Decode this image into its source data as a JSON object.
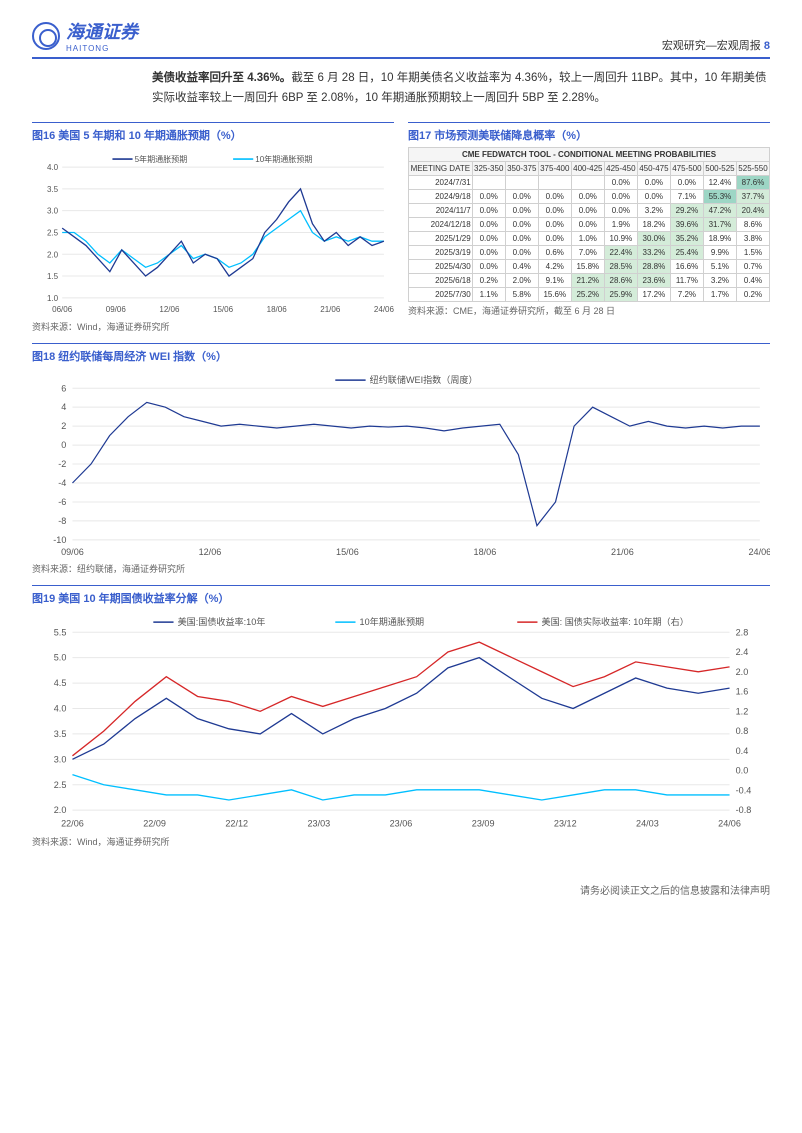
{
  "header": {
    "brand_cn": "海通证券",
    "brand_en": "HAITONG",
    "crumb": "宏观研究—宏观周报",
    "page_no": "8"
  },
  "paragraph": {
    "bold_lead": "美债收益率回升至 4.36%。",
    "rest": "截至 6 月 28 日，10 年期美债名义收益率为 4.36%，较上一周回升 11BP。其中，10 年期美债实际收益率较上一周回升 6BP 至 2.08%，10 年期通胀预期较上一周回升 5BP 至 2.28%。"
  },
  "fig16": {
    "title": "图16 美国 5 年期和 10 年期通胀预期（%）",
    "source": "资料来源：Wind，海通证券研究所",
    "legend": [
      "5年期通胀预期",
      "10年期通胀预期"
    ],
    "colors": [
      "#1f3a93",
      "#00bfff"
    ],
    "ylim": [
      1,
      4
    ],
    "ytick_step": 0.5,
    "xticks": [
      "06/06",
      "09/06",
      "12/06",
      "15/06",
      "18/06",
      "21/06",
      "24/06"
    ],
    "grid_color": "#e8e8e8",
    "bg_color": "#ffffff",
    "series_5y": [
      2.6,
      2.4,
      2.2,
      1.9,
      1.6,
      2.1,
      1.8,
      1.5,
      1.7,
      2.0,
      2.3,
      1.8,
      2.0,
      1.9,
      1.5,
      1.7,
      1.9,
      2.5,
      2.8,
      3.2,
      3.5,
      2.7,
      2.3,
      2.5,
      2.2,
      2.4,
      2.2,
      2.3
    ],
    "series_10y": [
      2.5,
      2.5,
      2.3,
      2.0,
      1.8,
      2.1,
      1.9,
      1.7,
      1.8,
      2.0,
      2.2,
      1.9,
      2.0,
      1.9,
      1.7,
      1.8,
      2.0,
      2.4,
      2.6,
      2.8,
      3.0,
      2.5,
      2.3,
      2.4,
      2.3,
      2.4,
      2.3,
      2.3
    ]
  },
  "fig17": {
    "title": "图17 市场预测美联储降息概率（%）",
    "source": "资料来源：CME，海通证券研究所，截至 6 月 28 日",
    "table_title": "CME FEDWATCH TOOL - CONDITIONAL MEETING PROBABILITIES",
    "col_head": "MEETING DATE",
    "cols": [
      "325-350",
      "350-375",
      "375-400",
      "400-425",
      "425-450",
      "450-475",
      "475-500",
      "500-525",
      "525-550"
    ],
    "rows": [
      {
        "d": "2024/7/31",
        "v": [
          "",
          "",
          "",
          "",
          "0.0%",
          "0.0%",
          "0.0%",
          "12.4%",
          "87.6%"
        ]
      },
      {
        "d": "2024/9/18",
        "v": [
          "0.0%",
          "0.0%",
          "0.0%",
          "0.0%",
          "0.0%",
          "0.0%",
          "7.1%",
          "55.3%",
          "37.7%"
        ]
      },
      {
        "d": "2024/11/7",
        "v": [
          "0.0%",
          "0.0%",
          "0.0%",
          "0.0%",
          "0.0%",
          "3.2%",
          "29.2%",
          "47.2%",
          "20.4%"
        ]
      },
      {
        "d": "2024/12/18",
        "v": [
          "0.0%",
          "0.0%",
          "0.0%",
          "0.0%",
          "1.9%",
          "18.2%",
          "39.6%",
          "31.7%",
          "8.6%"
        ]
      },
      {
        "d": "2025/1/29",
        "v": [
          "0.0%",
          "0.0%",
          "0.0%",
          "1.0%",
          "10.9%",
          "30.0%",
          "35.2%",
          "18.9%",
          "3.8%"
        ]
      },
      {
        "d": "2025/3/19",
        "v": [
          "0.0%",
          "0.0%",
          "0.6%",
          "7.0%",
          "22.4%",
          "33.2%",
          "25.4%",
          "9.9%",
          "1.5%"
        ]
      },
      {
        "d": "2025/4/30",
        "v": [
          "0.0%",
          "0.4%",
          "4.2%",
          "15.8%",
          "28.5%",
          "28.8%",
          "16.6%",
          "5.1%",
          "0.7%"
        ]
      },
      {
        "d": "2025/6/18",
        "v": [
          "0.2%",
          "2.0%",
          "9.1%",
          "21.2%",
          "28.6%",
          "23.6%",
          "11.7%",
          "3.2%",
          "0.4%"
        ]
      },
      {
        "d": "2025/7/30",
        "v": [
          "1.1%",
          "5.8%",
          "15.6%",
          "25.2%",
          "25.9%",
          "17.2%",
          "7.2%",
          "1.7%",
          "0.2%"
        ]
      }
    ],
    "heat_colors": {
      "high": "#9dd6c5",
      "mid": "#d4ecd9",
      "low": "#ffffff"
    }
  },
  "fig18": {
    "title": "图18 纽约联储每周经济 WEI 指数（%）",
    "source": "资料来源：纽约联储，海通证券研究所",
    "legend": [
      "纽约联储WEI指数（周度）"
    ],
    "color": "#1f3a93",
    "ylim": [
      -10,
      6
    ],
    "ytick_step": 2,
    "xticks": [
      "09/06",
      "12/06",
      "15/06",
      "18/06",
      "21/06",
      "24/06"
    ],
    "grid_color": "#e8e8e8",
    "series": [
      -4,
      -2,
      1,
      3,
      4.5,
      4,
      3,
      2.5,
      2,
      2.2,
      2,
      1.8,
      2,
      2.2,
      2,
      1.8,
      2,
      1.9,
      2,
      1.8,
      1.5,
      1.8,
      2,
      2.2,
      -1,
      -8.5,
      -6,
      2,
      4,
      3,
      2,
      2.5,
      2,
      1.8,
      2,
      1.8,
      2,
      2
    ]
  },
  "fig19": {
    "title": "图19 美国 10 年期国债收益率分解（%）",
    "source": "资料来源：Wind，海通证券研究所",
    "legend": [
      "美国:国债收益率:10年",
      "10年期通胀预期",
      "美国: 国债实际收益率: 10年期（右）"
    ],
    "colors": [
      "#1f3a93",
      "#00bfff",
      "#d62728"
    ],
    "ylim_left": [
      2.0,
      5.5
    ],
    "ytick_left_step": 0.5,
    "ylim_right": [
      -0.8,
      2.8
    ],
    "ytick_right_step": 0.4,
    "xticks": [
      "22/06",
      "22/09",
      "22/12",
      "23/03",
      "23/06",
      "23/09",
      "23/12",
      "24/03",
      "24/06"
    ],
    "grid_color": "#e8e8e8",
    "series_nominal": [
      3.0,
      3.3,
      3.8,
      4.2,
      3.8,
      3.6,
      3.5,
      3.9,
      3.5,
      3.8,
      4.0,
      4.3,
      4.8,
      5.0,
      4.6,
      4.2,
      4.0,
      4.3,
      4.6,
      4.4,
      4.3,
      4.4
    ],
    "series_inflation": [
      2.7,
      2.5,
      2.4,
      2.3,
      2.3,
      2.2,
      2.3,
      2.4,
      2.2,
      2.3,
      2.3,
      2.4,
      2.4,
      2.4,
      2.3,
      2.2,
      2.3,
      2.4,
      2.4,
      2.3,
      2.3,
      2.3
    ],
    "series_real": [
      0.3,
      0.8,
      1.4,
      1.9,
      1.5,
      1.4,
      1.2,
      1.5,
      1.3,
      1.5,
      1.7,
      1.9,
      2.4,
      2.6,
      2.3,
      2.0,
      1.7,
      1.9,
      2.2,
      2.1,
      2.0,
      2.1
    ]
  },
  "footer": "请务必阅读正文之后的信息披露和法律声明"
}
